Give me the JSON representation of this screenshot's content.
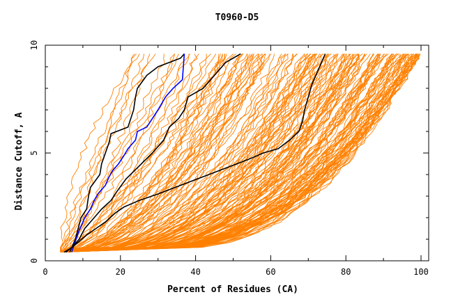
{
  "chart_data": {
    "type": "line",
    "title": "T0960-D5",
    "xlabel": "Percent of Residues (CA)",
    "ylabel": "Distance Cutoff, A",
    "xlim": [
      0,
      100
    ],
    "ylim": [
      0,
      10
    ],
    "x_ticks": [
      "0",
      "20",
      "40",
      "60",
      "80",
      "100"
    ],
    "y_ticks": [
      "0",
      "5",
      "10"
    ],
    "grid": false,
    "colors": {
      "background_models": "#ff8000",
      "highlight_black": "#000000",
      "highlight_blue": "#0000ff"
    },
    "series": [
      {
        "color": "#000000",
        "x": [
          6.5,
          8,
          9.5,
          11,
          11.5,
          12,
          14.5,
          15,
          17,
          17.5,
          22,
          23.5,
          24,
          24.5,
          27,
          30,
          36,
          37
        ],
        "y": [
          0.4,
          1,
          2,
          2.4,
          3,
          3.4,
          4,
          4.5,
          5.5,
          5.9,
          6.2,
          7,
          7.6,
          8,
          8.6,
          9,
          9.4,
          9.6
        ]
      },
      {
        "color": "#0000ff",
        "x": [
          7,
          8,
          9,
          10.5,
          12,
          13,
          14,
          16,
          17,
          18,
          19.5,
          21,
          22,
          24,
          24.5,
          27,
          28.5,
          30,
          32,
          34,
          36.5,
          37
        ],
        "y": [
          0.4,
          0.9,
          1.4,
          2,
          2.4,
          2.8,
          3.1,
          3.5,
          3.9,
          4.2,
          4.5,
          4.9,
          5.2,
          5.6,
          6,
          6.2,
          6.6,
          7,
          7.6,
          8,
          8.4,
          9.6
        ]
      },
      {
        "color": "#000000",
        "x": [
          5.5,
          7.5,
          9,
          10.5,
          13,
          15,
          17.5,
          19,
          21.5,
          25,
          28.5,
          31.5,
          33,
          35.5,
          37,
          38,
          40,
          42,
          45,
          48,
          51,
          52
        ],
        "y": [
          0.4,
          0.7,
          1,
          1.5,
          2,
          2.4,
          2.8,
          3.2,
          3.8,
          4.4,
          5,
          5.6,
          6.2,
          6.6,
          7,
          7.6,
          7.8,
          8,
          8.6,
          9.2,
          9.5,
          9.6
        ]
      },
      {
        "color": "#000000",
        "x": [
          5,
          7,
          9,
          11,
          13.5,
          16,
          18.5,
          21,
          25,
          30,
          36,
          42,
          48,
          54,
          58,
          62,
          65,
          67.5,
          68.5,
          69,
          70,
          71,
          72.5,
          74,
          74.5
        ],
        "y": [
          0.4,
          0.6,
          0.9,
          1.2,
          1.5,
          1.8,
          2.2,
          2.5,
          2.8,
          3.1,
          3.5,
          3.9,
          4.3,
          4.7,
          5,
          5.2,
          5.6,
          6,
          6.5,
          7,
          7.6,
          8.2,
          8.8,
          9.4,
          9.6
        ]
      }
    ]
  }
}
